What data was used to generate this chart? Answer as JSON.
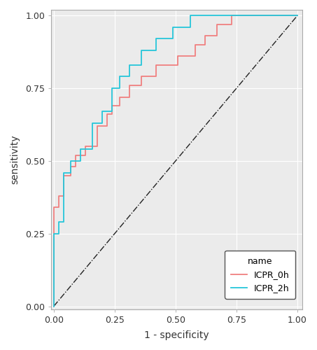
{
  "title": "",
  "xlabel": "1 - specificity",
  "ylabel": "sensitivity",
  "xlim": [
    0.0,
    1.02
  ],
  "ylim": [
    -0.01,
    1.02
  ],
  "xticks": [
    0.0,
    0.25,
    0.5,
    0.75,
    1.0
  ],
  "yticks": [
    0.0,
    0.25,
    0.5,
    0.75,
    1.0
  ],
  "background_color": "#ffffff",
  "panel_background": "#EBEBEB",
  "grid_color": "#ffffff",
  "line_color_0h": "#F08080",
  "line_color_2h": "#26C6DA",
  "diag_color": "#222222",
  "legend_title": "name",
  "legend_labels": [
    "ICPR_0h",
    "ICPR_2h"
  ],
  "roc_0h_fpr": [
    0.0,
    0.0,
    0.0,
    0.02,
    0.02,
    0.04,
    0.04,
    0.07,
    0.07,
    0.09,
    0.09,
    0.13,
    0.13,
    0.18,
    0.18,
    0.22,
    0.22,
    0.24,
    0.24,
    0.27,
    0.27,
    0.31,
    0.31,
    0.36,
    0.36,
    0.42,
    0.42,
    0.51,
    0.51,
    0.58,
    0.58,
    0.62,
    0.62,
    0.67,
    0.67,
    0.73,
    0.73,
    0.76,
    0.76,
    0.8,
    0.8,
    0.87,
    0.87,
    0.93,
    0.93,
    0.98,
    0.98,
    1.0
  ],
  "roc_0h_tpr": [
    0.0,
    0.0,
    0.34,
    0.34,
    0.38,
    0.38,
    0.45,
    0.45,
    0.48,
    0.48,
    0.52,
    0.52,
    0.55,
    0.55,
    0.62,
    0.62,
    0.66,
    0.66,
    0.69,
    0.69,
    0.72,
    0.72,
    0.76,
    0.76,
    0.79,
    0.79,
    0.83,
    0.83,
    0.86,
    0.86,
    0.9,
    0.9,
    0.93,
    0.93,
    0.97,
    0.97,
    1.0,
    1.0,
    1.0,
    1.0,
    1.0,
    1.0,
    1.0,
    1.0,
    1.0,
    1.0,
    1.0,
    1.0
  ],
  "roc_2h_fpr": [
    0.0,
    0.0,
    0.0,
    0.02,
    0.02,
    0.04,
    0.04,
    0.07,
    0.07,
    0.11,
    0.11,
    0.16,
    0.16,
    0.2,
    0.2,
    0.24,
    0.24,
    0.27,
    0.27,
    0.31,
    0.31,
    0.36,
    0.36,
    0.42,
    0.42,
    0.49,
    0.49,
    0.56,
    0.56,
    0.62,
    0.62,
    0.67,
    0.67,
    0.76,
    0.76,
    0.8,
    0.8,
    1.0
  ],
  "roc_2h_tpr": [
    0.0,
    0.0,
    0.25,
    0.25,
    0.29,
    0.29,
    0.46,
    0.46,
    0.5,
    0.5,
    0.54,
    0.54,
    0.63,
    0.63,
    0.67,
    0.67,
    0.75,
    0.75,
    0.79,
    0.79,
    0.83,
    0.83,
    0.88,
    0.88,
    0.92,
    0.92,
    0.96,
    0.96,
    1.0,
    1.0,
    1.0,
    1.0,
    1.0,
    1.0,
    1.0,
    1.0,
    1.0,
    1.0
  ]
}
